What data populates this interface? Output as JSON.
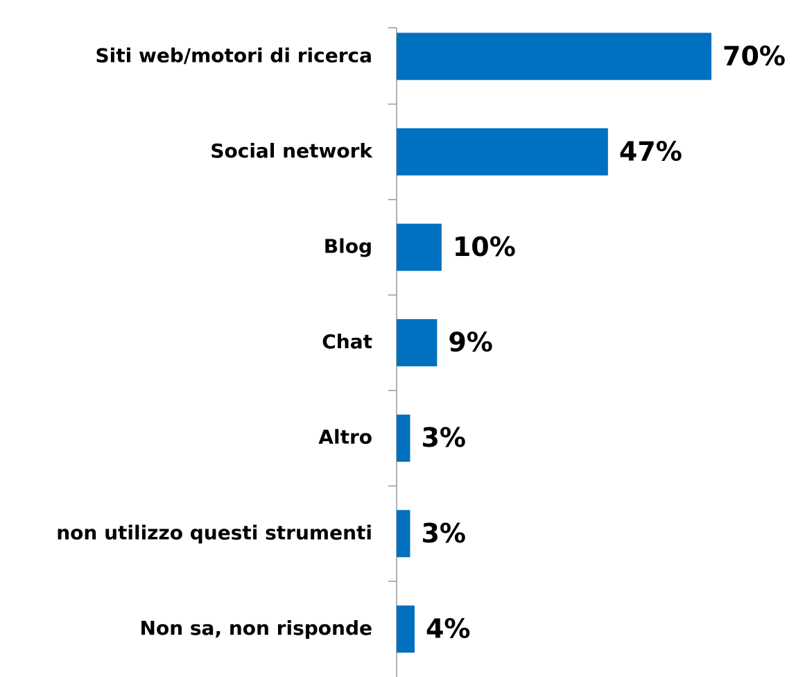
{
  "chart_data": {
    "type": "barh",
    "categories": [
      "Siti web/motori di ricerca",
      "Social network",
      "Blog",
      "Chat",
      "Altro",
      "non utilizzo questi strumenti",
      "Non sa, non risponde"
    ],
    "values": [
      70,
      47,
      10,
      9,
      3,
      3,
      4
    ],
    "value_labels": [
      "70%",
      "47%",
      "10%",
      "9%",
      "3%",
      "3%",
      "4%"
    ],
    "color": "#0070c0"
  }
}
